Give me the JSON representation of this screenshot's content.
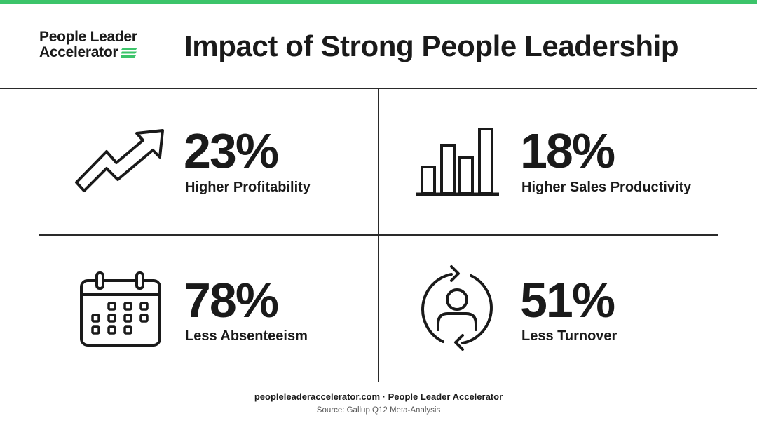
{
  "brand": {
    "line1": "People Leader",
    "line2": "Accelerator",
    "accent_color": "#3cc46a"
  },
  "title": "Impact of Strong People Leadership",
  "stats": [
    {
      "value": "23%",
      "label": "Higher Profitability",
      "icon": "trend-up-arrow-icon"
    },
    {
      "value": "18%",
      "label": "Higher Sales Productivity",
      "icon": "bar-chart-icon"
    },
    {
      "value": "78%",
      "label": "Less Absenteeism",
      "icon": "calendar-icon"
    },
    {
      "value": "51%",
      "label": "Less Turnover",
      "icon": "person-refresh-icon"
    }
  ],
  "footer": {
    "site": "peopleleaderaccelerator.com · People Leader Accelerator",
    "source": "Source: Gallup Q12 Meta-Analysis"
  }
}
